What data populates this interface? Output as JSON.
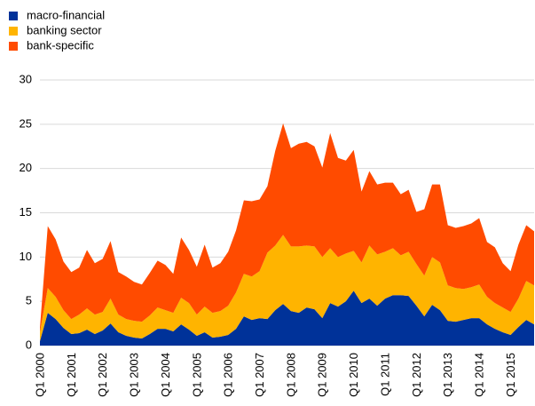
{
  "chart_data": {
    "type": "stacked-area",
    "categories": [
      "Q1 2000",
      null,
      null,
      null,
      "Q1 2001",
      null,
      null,
      null,
      "Q1 2002",
      null,
      null,
      null,
      "Q1 2003",
      null,
      null,
      null,
      "Q1 2004",
      null,
      null,
      null,
      "Q1 2005",
      null,
      null,
      null,
      "Q1 2006",
      null,
      null,
      null,
      "Q1 2007",
      null,
      null,
      null,
      "Q1 2008",
      null,
      null,
      null,
      "Q1 2009",
      null,
      null,
      null,
      "Q1 2010",
      null,
      null,
      null,
      "Q1 2011",
      null,
      null,
      null,
      "Q1 2012",
      null,
      null,
      null,
      "Q1 2013",
      null,
      null,
      null,
      "Q1 2014",
      null,
      null,
      null,
      "Q1 2015",
      null,
      null,
      null
    ],
    "series": [
      {
        "name": "macro-financial",
        "color": "#003299",
        "values": [
          0.5,
          3.7,
          3.0,
          2.0,
          1.3,
          1.4,
          1.8,
          1.3,
          1.7,
          2.5,
          1.5,
          1.1,
          0.9,
          0.8,
          1.3,
          1.9,
          1.9,
          1.6,
          2.4,
          1.8,
          1.1,
          1.5,
          0.9,
          1.0,
          1.2,
          1.9,
          3.3,
          2.9,
          3.1,
          3.0,
          4.0,
          4.7,
          3.9,
          3.7,
          4.3,
          4.1,
          3.1,
          4.8,
          4.4,
          5.0,
          6.2,
          4.8,
          5.3,
          4.5,
          5.3,
          5.7,
          5.7,
          5.6,
          4.5,
          3.3,
          4.6,
          4.0,
          2.8,
          2.7,
          2.9,
          3.1,
          3.1,
          2.4,
          1.9,
          1.5,
          1.2,
          2.1,
          2.9,
          2.4
        ]
      },
      {
        "name": "banking sector",
        "color": "#ffb400",
        "values": [
          1.0,
          2.8,
          2.5,
          2.0,
          1.7,
          2.1,
          2.4,
          2.2,
          2.1,
          2.8,
          2.0,
          1.9,
          1.9,
          1.9,
          2.1,
          2.4,
          2.1,
          2.1,
          3.0,
          3.0,
          2.4,
          2.9,
          2.8,
          2.9,
          3.3,
          4.1,
          4.8,
          4.9,
          5.3,
          7.5,
          7.3,
          7.8,
          7.3,
          7.5,
          7.0,
          7.1,
          6.9,
          6.2,
          5.6,
          5.4,
          4.5,
          4.6,
          6.0,
          5.8,
          5.3,
          5.3,
          4.5,
          5.0,
          4.7,
          4.6,
          5.4,
          5.4,
          4.0,
          3.8,
          3.5,
          3.5,
          3.8,
          3.1,
          2.9,
          2.8,
          2.6,
          3.2,
          4.4,
          4.4
        ]
      },
      {
        "name": "bank-specific",
        "color": "#ff4b00",
        "values": [
          0.5,
          7.0,
          6.5,
          5.5,
          5.3,
          5.3,
          6.6,
          5.8,
          6.0,
          6.5,
          4.8,
          4.8,
          4.4,
          4.2,
          4.8,
          5.3,
          5.1,
          4.4,
          6.8,
          6.0,
          5.4,
          7.0,
          5.1,
          5.4,
          6.1,
          7.0,
          8.3,
          8.5,
          8.1,
          7.5,
          10.7,
          12.6,
          11.1,
          11.6,
          11.7,
          11.3,
          10.1,
          13.0,
          11.2,
          10.5,
          11.4,
          8.0,
          8.4,
          7.9,
          7.8,
          7.4,
          6.9,
          7.0,
          5.9,
          7.5,
          8.2,
          8.8,
          6.8,
          6.8,
          7.1,
          7.2,
          7.5,
          6.2,
          6.3,
          5.0,
          4.6,
          6.1,
          6.3,
          6.1
        ]
      }
    ],
    "ylim": [
      0,
      30
    ],
    "yticks": [
      0,
      5,
      10,
      15,
      20,
      25,
      30
    ],
    "grid": true,
    "legend": "top-left"
  }
}
